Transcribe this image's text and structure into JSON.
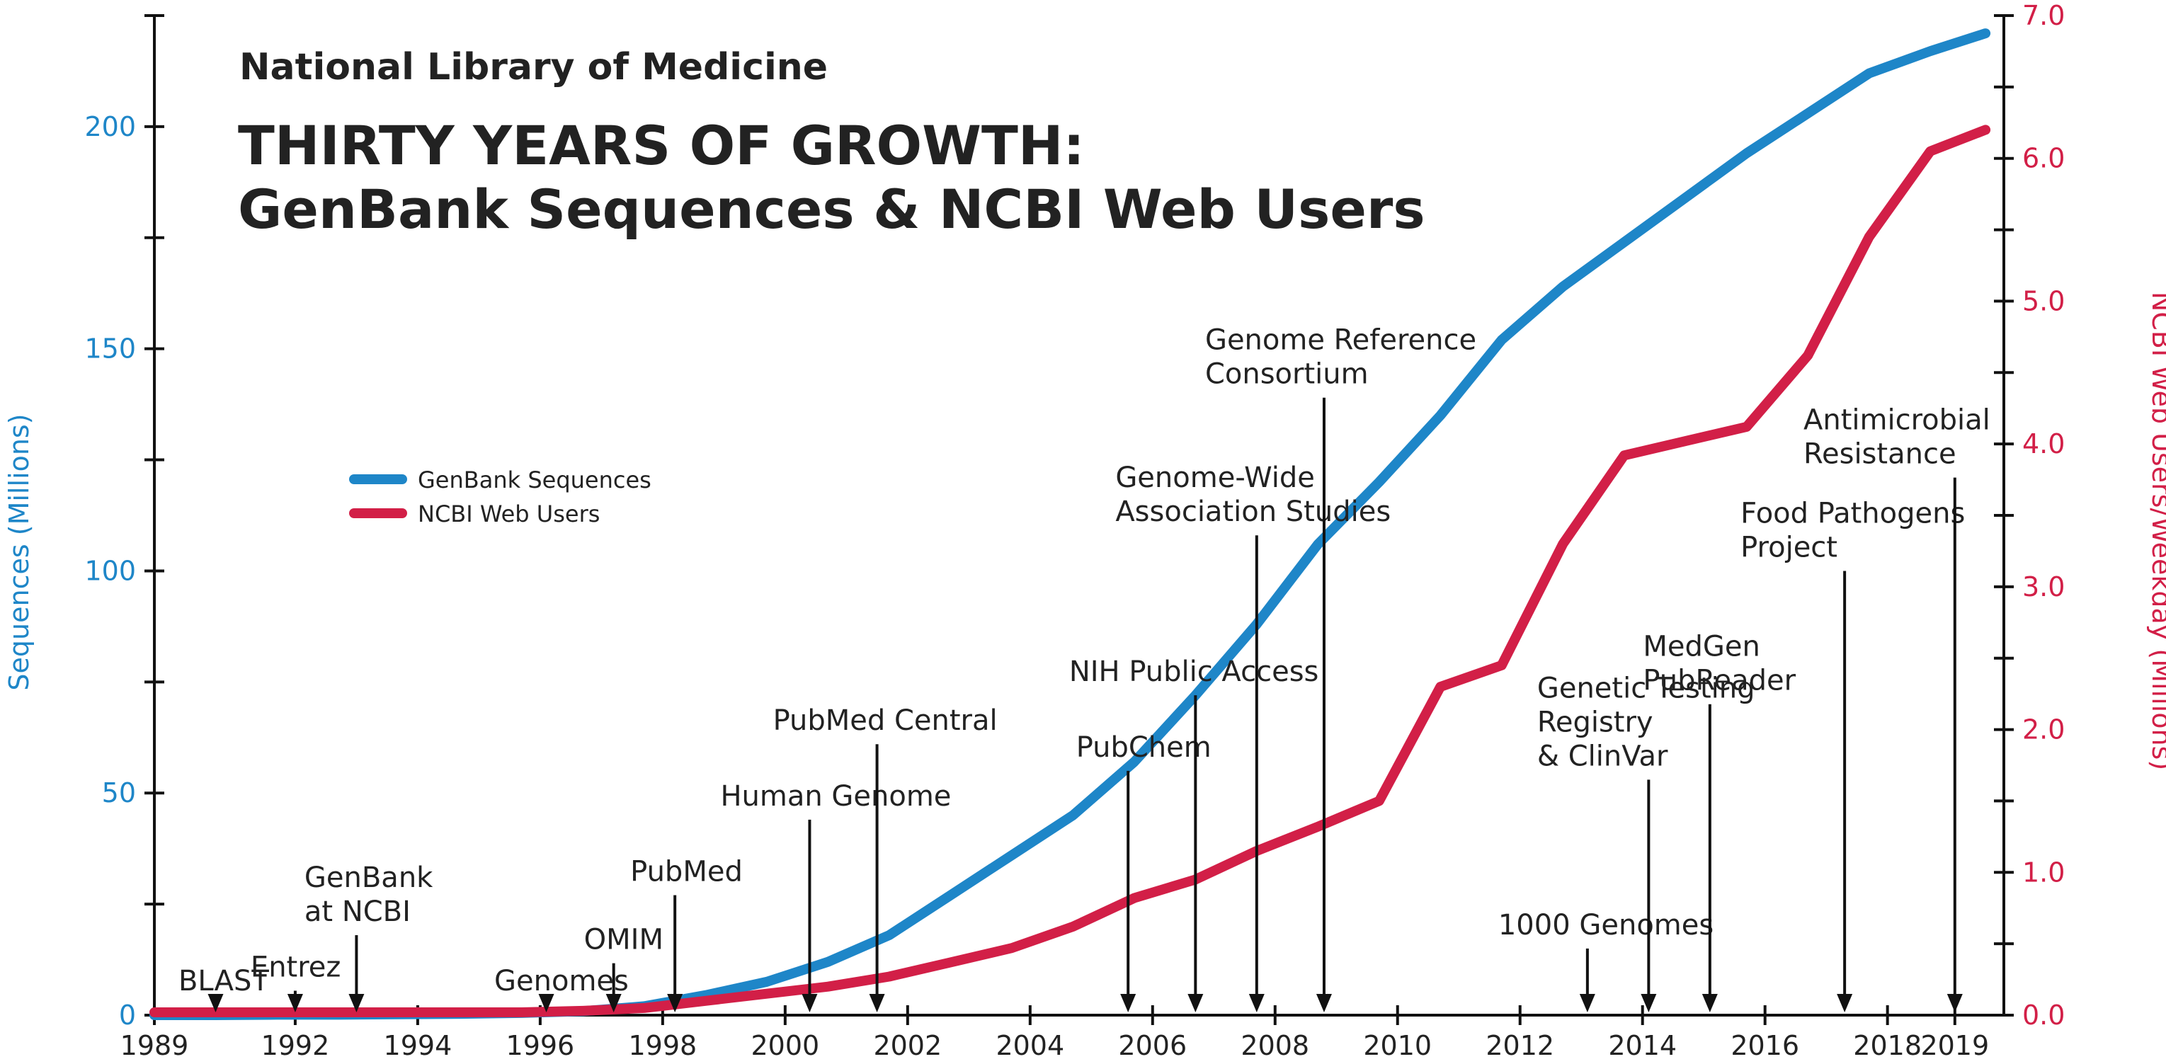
{
  "header": {
    "org": "National Library of Medicine",
    "title_line1": "THIRTY YEARS OF GROWTH:",
    "title_line2": "GenBank Sequences & NCBI Web Users"
  },
  "colors": {
    "genbank": "#1e86c8",
    "ncbi": "#d21f47",
    "axis": "#111111",
    "text": "#222222"
  },
  "chart_data": {
    "type": "line",
    "title": "THIRTY YEARS OF GROWTH: GenBank Sequences & NCBI Web Users",
    "xlabel": "",
    "ylabel_left": "Sequences (Millions)",
    "ylabel_right": "NCBI Web Users/Weekday (Millions)",
    "xlim": [
      1989,
      2019.2
    ],
    "ylim_left": [
      0,
      225
    ],
    "ylim_right": [
      0,
      7.0
    ],
    "x_ticks": [
      "1989",
      "1992",
      "1994",
      "1996",
      "1998",
      "2000",
      "2002",
      "2004",
      "2006",
      "2008",
      "2010",
      "2012",
      "2014",
      "2016",
      "2018",
      "2019"
    ],
    "x_tick_values": [
      1989,
      1991.3,
      1993.3,
      1995.3,
      1997.3,
      1999.3,
      2001.3,
      2003.3,
      2005.3,
      2007.3,
      2009.3,
      2011.3,
      2013.3,
      2015.3,
      2017.3,
      2018.4
    ],
    "y_left_ticks": [
      "0",
      "50",
      "100",
      "150",
      "200"
    ],
    "y_left_tick_values": [
      0,
      50,
      100,
      150,
      200
    ],
    "y_right_ticks": [
      "0.0",
      "1.0",
      "2.0",
      "3.0",
      "4.0",
      "5.0",
      "6.0",
      "7.0"
    ],
    "y_right_tick_values": [
      0,
      1,
      2,
      3,
      4,
      5,
      6,
      7
    ],
    "legend_position": "left",
    "grid": false,
    "series": [
      {
        "name": "GenBank Sequences",
        "axis": "left",
        "color": "#1e86c8",
        "x": [
          1989,
          1990,
          1991,
          1992,
          1993,
          1994,
          1995,
          1996,
          1997,
          1998,
          1999,
          2000,
          2001,
          2002,
          2003,
          2004,
          2005,
          2006,
          2007,
          2008,
          2009,
          2010,
          2011,
          2012,
          2013,
          2014,
          2015,
          2016,
          2017,
          2018,
          2018.9
        ],
        "values": [
          0,
          0,
          0.1,
          0.1,
          0.2,
          0.3,
          0.5,
          0.9,
          2,
          4.5,
          7.5,
          12,
          18,
          27,
          36,
          45,
          57,
          72,
          88,
          106,
          120,
          135,
          152,
          164,
          174,
          184,
          194,
          203,
          212,
          217,
          221
        ]
      },
      {
        "name": "NCBI Web Users",
        "axis": "right",
        "color": "#d21f47",
        "x": [
          1989,
          1990,
          1991,
          1992,
          1993,
          1994,
          1995,
          1996,
          1997,
          1998,
          1999,
          2000,
          2001,
          2002,
          2003,
          2004,
          2005,
          2006,
          2007,
          2008,
          2009,
          2010,
          2011,
          2012,
          2013,
          2014,
          2015,
          2016,
          2017,
          2018,
          2018.9
        ],
        "values": [
          0.02,
          0.02,
          0.02,
          0.02,
          0.02,
          0.02,
          0.02,
          0.03,
          0.05,
          0.1,
          0.15,
          0.2,
          0.27,
          0.37,
          0.47,
          0.62,
          0.82,
          0.95,
          1.15,
          1.32,
          1.5,
          2.3,
          2.45,
          3.3,
          3.92,
          4.02,
          4.12,
          4.62,
          5.45,
          6.05,
          6.2
        ]
      }
    ],
    "annotations": [
      {
        "lines": [
          "BLAST"
        ],
        "x": 1990.0,
        "arrow_top_y": 2.4
      },
      {
        "lines": [
          "Entrez"
        ],
        "x": 1991.3,
        "arrow_top_y": 5.5
      },
      {
        "lines": [
          "GenBank",
          "at NCBI"
        ],
        "x": 1992.3,
        "arrow_top_y": 18
      },
      {
        "lines": [
          "Genomes"
        ],
        "x": 1995.4,
        "arrow_top_y": 2.4
      },
      {
        "lines": [
          "OMIM"
        ],
        "x": 1996.5,
        "arrow_top_y": 11.7
      },
      {
        "lines": [
          "PubMed"
        ],
        "x": 1997.5,
        "arrow_top_y": 27
      },
      {
        "lines": [
          "Human Genome"
        ],
        "x": 1999.7,
        "arrow_top_y": 44
      },
      {
        "lines": [
          "PubMed Central"
        ],
        "x": 2000.8,
        "arrow_top_y": 61
      },
      {
        "lines": [
          "PubChem"
        ],
        "x": 2004.9,
        "arrow_top_y": 55
      },
      {
        "lines": [
          "NIH Public Access"
        ],
        "x": 2006.0,
        "arrow_top_y": 72
      },
      {
        "lines": [
          "Genome-Wide",
          "Association Studies"
        ],
        "x": 2007.0,
        "arrow_top_y": 108
      },
      {
        "lines": [
          "Genome Reference",
          "Consortium"
        ],
        "x": 2008.1,
        "arrow_top_y": 139
      },
      {
        "lines": [
          "1000 Genomes"
        ],
        "x": 2012.4,
        "arrow_top_y": 15
      },
      {
        "lines": [
          "Genetic Testing",
          "Registry",
          "& ClinVar"
        ],
        "x": 2013.4,
        "arrow_top_y": 53
      },
      {
        "lines": [
          "MedGen",
          "PubReader"
        ],
        "x": 2014.4,
        "arrow_top_y": 70
      },
      {
        "lines": [
          "Food Pathogens",
          "Project"
        ],
        "x": 2016.6,
        "arrow_top_y": 100
      },
      {
        "lines": [
          "Antimicrobial",
          "Resistance"
        ],
        "x": 2018.4,
        "arrow_top_y": 121
      }
    ]
  }
}
